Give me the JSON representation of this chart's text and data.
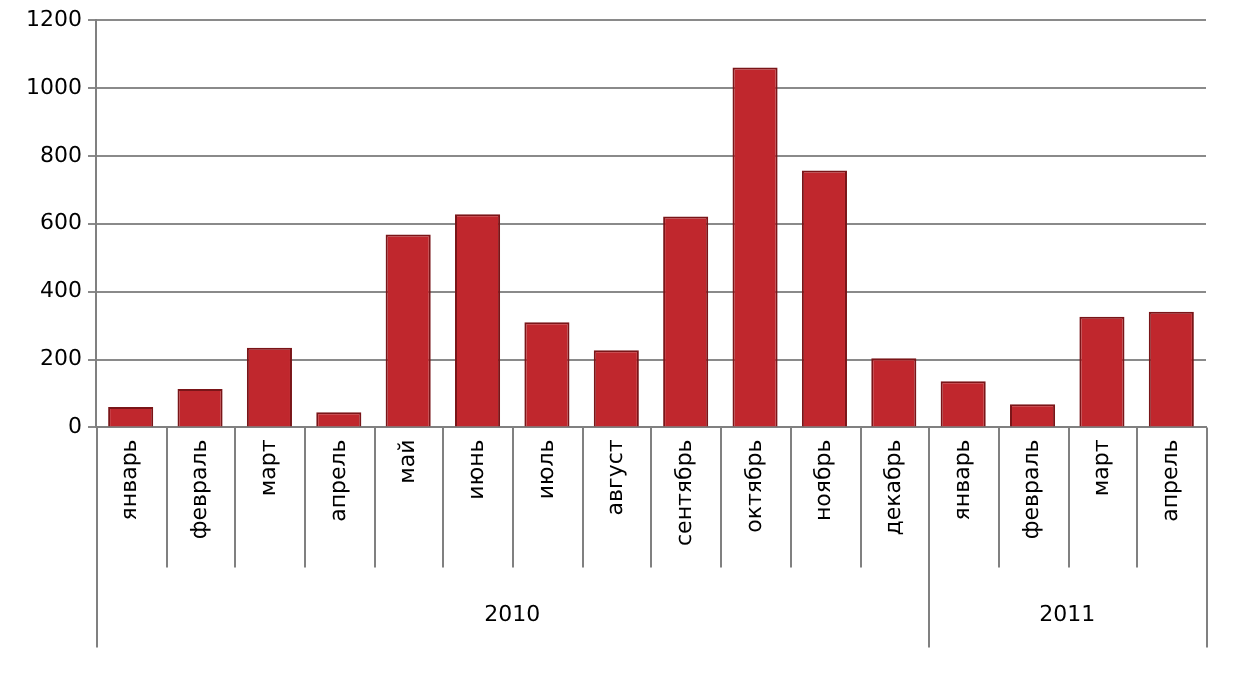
{
  "chart_data": {
    "type": "bar",
    "categories": [
      "январь",
      "февраль",
      "март",
      "апрель",
      "май",
      "июнь",
      "июль",
      "август",
      "сентябрь",
      "октябрь",
      "ноябрь",
      "декабрь",
      "январь",
      "февраль",
      "март",
      "апрель"
    ],
    "values": [
      60,
      113,
      235,
      45,
      568,
      628,
      310,
      227,
      621,
      1060,
      757,
      204,
      136,
      68,
      326,
      341
    ],
    "color": "#c0272d",
    "ylim": [
      0,
      1200
    ],
    "yticks": [
      0,
      200,
      400,
      600,
      800,
      1000,
      1200
    ],
    "grid": "y",
    "legend": false,
    "annotations": [
      "2010",
      "2011"
    ]
  }
}
